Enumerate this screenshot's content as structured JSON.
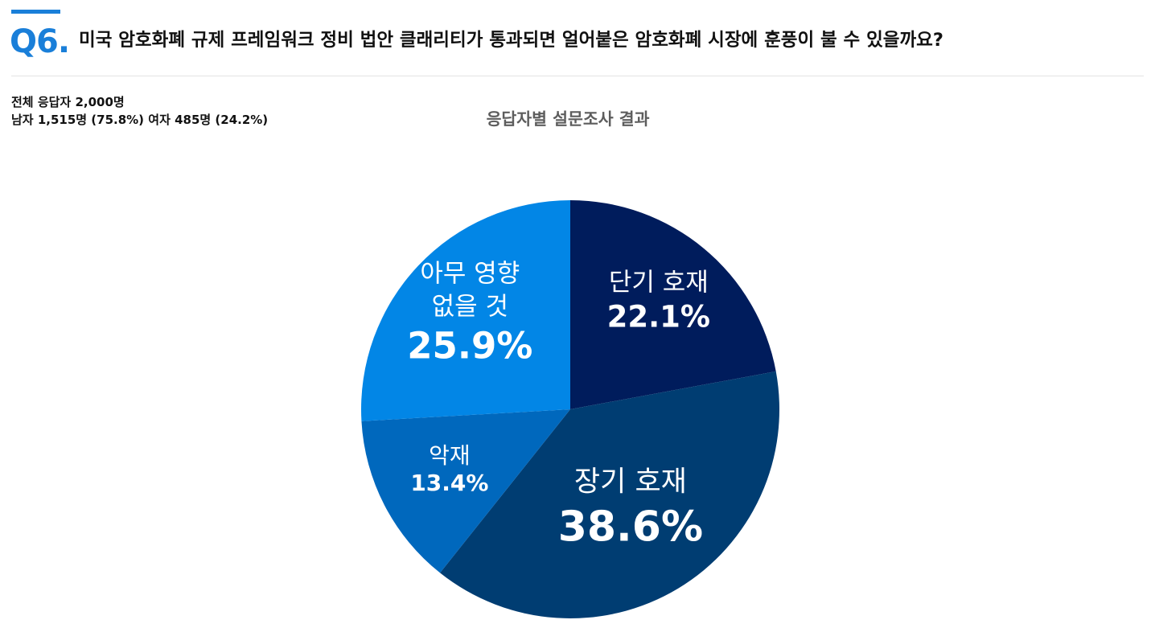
{
  "header": {
    "question_number": "Q6.",
    "question": "미국 암호화폐 규제 프레임워크 정비 법안 클래리티가 통과되면 얼어붙은 암호화폐 시장에 훈풍이 불 수 있을까요?"
  },
  "respondents": {
    "total": "전체 응답자 2,000명",
    "breakdown": "남자 1,515명 (75.8%) 여자 485명 (24.2%)"
  },
  "chart_data": {
    "type": "pie",
    "title": "응답자별 설문조사 결과",
    "start_angle_deg": 0,
    "direction": "clockwise",
    "slices": [
      {
        "label": [
          "단기 호재"
        ],
        "value": 22.1,
        "value_label": "22.1%",
        "color": "#001c5c"
      },
      {
        "label": [
          "장기 호재"
        ],
        "value": 38.6,
        "value_label": "38.6%",
        "color": "#003d72"
      },
      {
        "label": [
          "악재"
        ],
        "value": 13.4,
        "value_label": "13.4%",
        "color": "#0068bd"
      },
      {
        "label": [
          "아무 영향",
          "없을 것"
        ],
        "value": 25.9,
        "value_label": "25.9%",
        "color": "#0286e6"
      }
    ]
  }
}
